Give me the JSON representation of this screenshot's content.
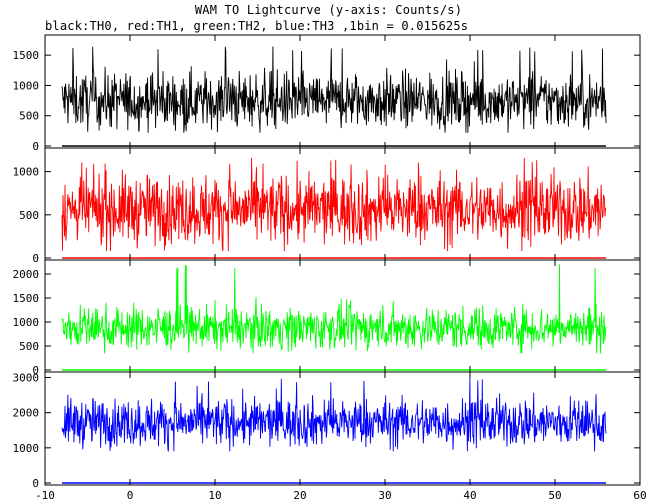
{
  "title": "WAM TO Lightcurve (y-axis: Counts/s)",
  "subtitle": "black:TH0, red:TH1, green:TH2, blue:TH3 ,1bin = 0.015625s",
  "chart_data": {
    "type": "line",
    "x": {
      "range": [
        -10,
        60
      ],
      "ticks": [
        -10,
        0,
        10,
        20,
        30,
        40,
        50,
        60
      ],
      "data_range": [
        -8,
        56
      ]
    },
    "panels": [
      {
        "series": "TH0",
        "color": "#000000",
        "ylim": [
          0,
          1800
        ],
        "yticks": [
          0,
          500,
          1000,
          1500
        ],
        "mean": 750,
        "spread": 230,
        "max": 1650,
        "min": 220
      },
      {
        "series": "TH1",
        "color": "#ff0000",
        "ylim": [
          0,
          1250
        ],
        "yticks": [
          0,
          500,
          1000
        ],
        "mean": 560,
        "spread": 200,
        "max": 1160,
        "min": 80
      },
      {
        "series": "TH2",
        "color": "#00ff00",
        "ylim": [
          0,
          2250
        ],
        "yticks": [
          0,
          500,
          1000,
          1500,
          2000
        ],
        "mean": 880,
        "spread": 220,
        "max": 2200,
        "min": 350
      },
      {
        "series": "TH3",
        "color": "#0000ff",
        "ylim": [
          0,
          3100
        ],
        "yticks": [
          0,
          1000,
          2000,
          3000
        ],
        "mean": 1720,
        "spread": 340,
        "max": 3000,
        "min": 900
      }
    ]
  }
}
